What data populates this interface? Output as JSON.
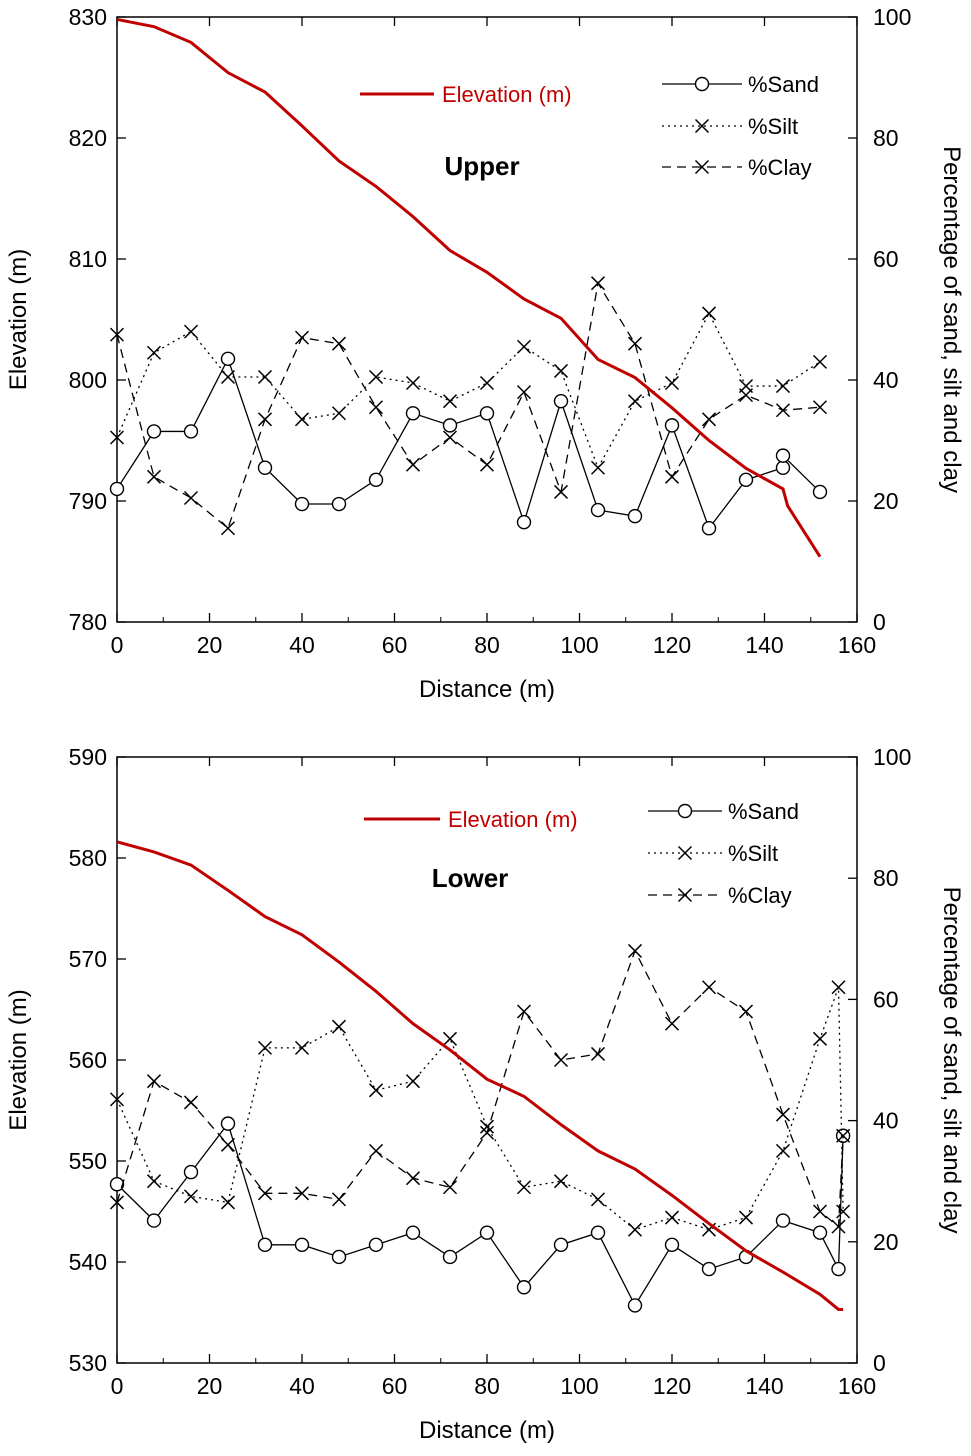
{
  "colors": {
    "elevation": "#c00000",
    "series": "#000000",
    "background": "#ffffff"
  },
  "chart_data": [
    {
      "type": "line",
      "title": "Upper",
      "xlabel": "Distance (m)",
      "ylabel": "Elevation (m)",
      "y2label": "Percentage of sand, silt and clay",
      "xlim": [
        0,
        160
      ],
      "ylim": [
        780,
        830
      ],
      "y2lim": [
        0,
        100
      ],
      "xticks": [
        "0",
        "20",
        "40",
        "60",
        "80",
        "100",
        "120",
        "140",
        "160"
      ],
      "yticks": [
        "780",
        "790",
        "800",
        "810",
        "820",
        "830"
      ],
      "y2ticks": [
        "0",
        "20",
        "40",
        "60",
        "80",
        "100"
      ],
      "legend": {
        "elevation": "Elevation (m)",
        "sand": "%Sand",
        "silt": "%Silt",
        "clay": "%Clay"
      },
      "series": [
        {
          "name": "Elevation (m)",
          "axis": "left",
          "x": [
            0,
            8,
            16,
            24,
            32,
            40,
            48,
            56,
            64,
            72,
            80,
            88,
            96,
            104,
            112,
            120,
            128,
            136,
            144,
            145,
            152
          ],
          "values": [
            829.8,
            829.2,
            827.9,
            825.4,
            823.8,
            821.0,
            818.1,
            816.0,
            813.5,
            810.7,
            808.9,
            806.7,
            805.1,
            801.7,
            800.2,
            797.7,
            795.0,
            792.7,
            791.0,
            789.6,
            785.4
          ]
        },
        {
          "name": "%Sand",
          "axis": "right",
          "x": [
            0,
            8,
            16,
            24,
            32,
            40,
            48,
            56,
            64,
            72,
            80,
            88,
            96,
            104,
            112,
            120,
            128,
            136,
            144,
            144,
            152
          ],
          "values": [
            22,
            31.5,
            31.5,
            43.5,
            25.5,
            19.5,
            19.5,
            23.5,
            34.5,
            32.5,
            34.5,
            16.5,
            36.5,
            18.5,
            17.5,
            32.5,
            15.5,
            23.5,
            25.5,
            27.5,
            21.5
          ]
        },
        {
          "name": "%Silt",
          "axis": "right",
          "x": [
            0,
            8,
            16,
            24,
            32,
            40,
            48,
            56,
            64,
            72,
            80,
            88,
            96,
            104,
            112,
            120,
            128,
            136,
            144,
            152
          ],
          "values": [
            30.5,
            44.5,
            48,
            40.5,
            40.5,
            33.5,
            34.5,
            40.5,
            39.5,
            36.5,
            39.5,
            45.5,
            41.5,
            25.5,
            36.5,
            39.5,
            51,
            39,
            39,
            43
          ]
        },
        {
          "name": "%Clay",
          "axis": "right",
          "x": [
            0,
            8,
            16,
            24,
            32,
            40,
            48,
            56,
            64,
            72,
            80,
            88,
            96,
            104,
            112,
            120,
            128,
            136,
            144,
            152
          ],
          "values": [
            47.5,
            24,
            20.5,
            15.5,
            33.5,
            47,
            46,
            35.5,
            26,
            30.5,
            26,
            38,
            21.5,
            56,
            46,
            24,
            33.5,
            37.5,
            35,
            35.5
          ]
        }
      ]
    },
    {
      "type": "line",
      "title": "Lower",
      "xlabel": "Distance (m)",
      "ylabel": "Elevation (m)",
      "y2label": "Percentage of sand, silt and clay",
      "xlim": [
        0,
        160
      ],
      "ylim": [
        530,
        590
      ],
      "y2lim": [
        0,
        100
      ],
      "xticks": [
        "0",
        "20",
        "40",
        "60",
        "80",
        "100",
        "120",
        "140",
        "160"
      ],
      "yticks": [
        "530",
        "540",
        "550",
        "560",
        "570",
        "580",
        "590"
      ],
      "y2ticks": [
        "0",
        "20",
        "40",
        "60",
        "80",
        "100"
      ],
      "legend": {
        "elevation": "Elevation (m)",
        "sand": "%Sand",
        "silt": "%Silt",
        "clay": "%Clay"
      },
      "series": [
        {
          "name": "Elevation (m)",
          "axis": "left",
          "x": [
            0,
            8,
            16,
            24,
            32,
            40,
            48,
            56,
            64,
            72,
            80,
            88,
            96,
            104,
            112,
            120,
            128,
            136,
            144,
            152,
            156,
            157
          ],
          "values": [
            581.6,
            580.6,
            579.3,
            576.8,
            574.2,
            572.4,
            569.7,
            566.8,
            563.6,
            561.0,
            558.1,
            556.4,
            553.6,
            551.0,
            549.2,
            546.6,
            543.8,
            541.1,
            539.0,
            536.8,
            535.3,
            535.3
          ]
        },
        {
          "name": "%Sand",
          "axis": "right",
          "x": [
            0,
            8,
            16,
            24,
            32,
            40,
            48,
            56,
            64,
            72,
            80,
            88,
            96,
            104,
            112,
            120,
            128,
            136,
            144,
            152,
            156,
            157
          ],
          "values": [
            29.5,
            23.5,
            31.5,
            39.5,
            19.5,
            19.5,
            17.5,
            19.5,
            21.5,
            17.5,
            21.5,
            12.5,
            19.5,
            21.5,
            9.5,
            19.5,
            15.5,
            17.5,
            23.5,
            21.5,
            15.5,
            37.5
          ]
        },
        {
          "name": "%Silt",
          "axis": "right",
          "x": [
            0,
            8,
            16,
            24,
            32,
            40,
            48,
            56,
            64,
            72,
            80,
            88,
            96,
            104,
            112,
            120,
            128,
            136,
            144,
            152,
            156,
            157
          ],
          "values": [
            43.5,
            30,
            27.5,
            26.5,
            52,
            52,
            55.5,
            45,
            46.5,
            53.5,
            39,
            29,
            30,
            27,
            22,
            24,
            22,
            24,
            35,
            53.5,
            62,
            25
          ]
        },
        {
          "name": "%Clay",
          "axis": "right",
          "x": [
            0,
            8,
            16,
            24,
            32,
            40,
            48,
            56,
            64,
            72,
            80,
            88,
            96,
            104,
            112,
            120,
            128,
            136,
            144,
            152,
            156,
            157
          ],
          "values": [
            26.5,
            46.5,
            43,
            36,
            28,
            28,
            27,
            35,
            30.5,
            29,
            38,
            58,
            50,
            51,
            68,
            56,
            62,
            58,
            41,
            25,
            22.5,
            37.5
          ]
        }
      ]
    }
  ]
}
